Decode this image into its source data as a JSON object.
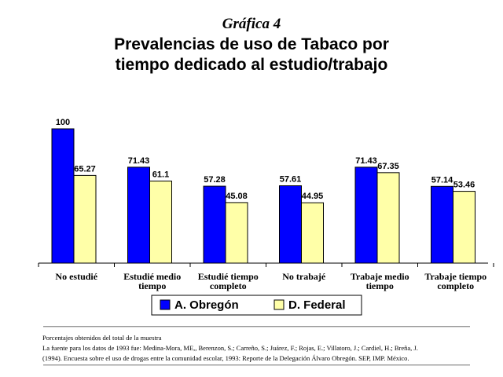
{
  "figure_label": "Gráfica 4",
  "title_lines": [
    "Prevalencias de uso de Tabaco por",
    "tiempo dedicado al estudio/trabajo"
  ],
  "chart_data": {
    "type": "bar",
    "categories": [
      [
        "No estudié"
      ],
      [
        "Estudié medio",
        "tiempo"
      ],
      [
        "Estudié tiempo",
        "completo"
      ],
      [
        "No trabajé"
      ],
      [
        "Trabaje medio",
        "tiempo"
      ],
      [
        "Trabaje tiempo",
        "completo"
      ]
    ],
    "series": [
      {
        "name": "A. Obregón",
        "values": [
          100,
          71.43,
          57.28,
          57.61,
          71.43,
          57.14
        ],
        "color": "#0000ff"
      },
      {
        "name": "D. Federal",
        "values": [
          65.27,
          61.1,
          45.08,
          44.95,
          67.35,
          53.46
        ],
        "color": "#ffffa8"
      }
    ],
    "ylim": [
      0,
      100
    ],
    "grid": false,
    "legend": "bottom",
    "value_labels": true
  },
  "footnotes": [
    "Porcentajes obtenidos del total de la muestra",
    "La fuente para los datos de 1993 fue: Medina-Mora, ME,, Berenzon, S.; Carreño, S.; Juárez, F.; Rojas, E.; Villatoro, J.; Cardiel, H.; Breña, J.",
    "(1994). Encuesta sobre el uso de drogas entre la comunidad escolar, 1993: Reporte de la Delegación Álvaro Obregón. SEP, IMP. México."
  ]
}
